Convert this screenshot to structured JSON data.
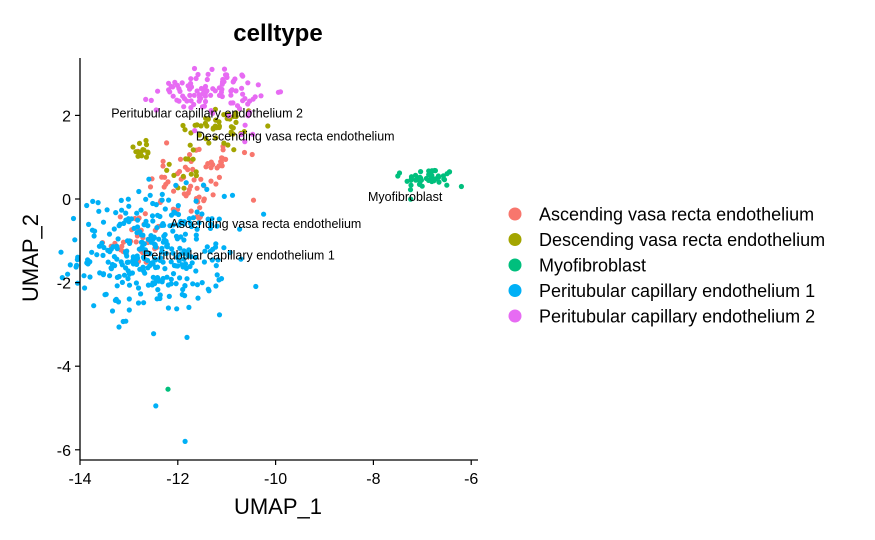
{
  "chart_data": {
    "type": "scatter",
    "title": "celltype",
    "xlabel": "UMAP_1",
    "ylabel": "UMAP_2",
    "xlim": [
      -14,
      -6
    ],
    "ylim": [
      -6,
      3
    ],
    "x_ticks": [
      "-14",
      "-12",
      "-10",
      "-8",
      "-6"
    ],
    "y_ticks": [
      "-6",
      "-4",
      "-2",
      "0",
      "2"
    ],
    "grid": false,
    "legend_position": "right",
    "series": [
      {
        "name": "Ascending vasa recta endothelium",
        "color": "#F8766D",
        "clusters": [
          {
            "cx": -11.7,
            "cy": 0.3,
            "sx": 0.45,
            "sy": 0.45,
            "n": 55
          },
          {
            "cx": -12.9,
            "cy": -0.9,
            "sx": 0.35,
            "sy": 0.35,
            "n": 30
          },
          {
            "cx": -11.2,
            "cy": 1.0,
            "sx": 0.4,
            "sy": 0.3,
            "n": 15
          }
        ]
      },
      {
        "name": "Descending vasa recta endothelium",
        "color": "#A3A500",
        "clusters": [
          {
            "cx": -11.2,
            "cy": 1.7,
            "sx": 0.45,
            "sy": 0.3,
            "n": 45
          },
          {
            "cx": -12.7,
            "cy": 1.2,
            "sx": 0.1,
            "sy": 0.15,
            "n": 14
          },
          {
            "cx": -11.9,
            "cy": 0.6,
            "sx": 0.2,
            "sy": 0.25,
            "n": 12
          }
        ]
      },
      {
        "name": "Myofibroblast",
        "color": "#00BF7D",
        "clusters": [
          {
            "cx": -6.85,
            "cy": 0.5,
            "sx": 0.25,
            "sy": 0.12,
            "n": 45
          }
        ],
        "points": [
          [
            -7.5,
            0.55
          ],
          [
            -6.2,
            0.3
          ],
          [
            -12.2,
            -4.55
          ]
        ]
      },
      {
        "name": "Peritubular capillary endothelium 1",
        "color": "#00B0F6",
        "clusters": [
          {
            "cx": -12.5,
            "cy": -1.3,
            "sx": 0.75,
            "sy": 0.7,
            "n": 330
          }
        ],
        "points": [
          [
            -12.45,
            -4.95
          ],
          [
            -11.85,
            -5.8
          ]
        ]
      },
      {
        "name": "Peritubular capillary endothelium 2",
        "color": "#E76BF3",
        "clusters": [
          {
            "cx": -11.4,
            "cy": 2.6,
            "sx": 0.5,
            "sy": 0.25,
            "n": 95
          },
          {
            "cx": -10.6,
            "cy": 1.8,
            "sx": 0.15,
            "sy": 0.3,
            "n": 10
          }
        ]
      }
    ],
    "annotations": [
      {
        "text": "Peritubular capillary endothelium 2",
        "x": -11.4,
        "y": 2.05
      },
      {
        "text": "Descending vasa recta endothelium",
        "x": -9.6,
        "y": 1.5
      },
      {
        "text": "Myofibroblast",
        "x": -7.35,
        "y": 0.05
      },
      {
        "text": "Ascending vasa recta endothelium",
        "x": -10.2,
        "y": -0.6
      },
      {
        "text": "Peritubular capillary endothelium 1",
        "x": -10.75,
        "y": -1.35
      }
    ]
  }
}
